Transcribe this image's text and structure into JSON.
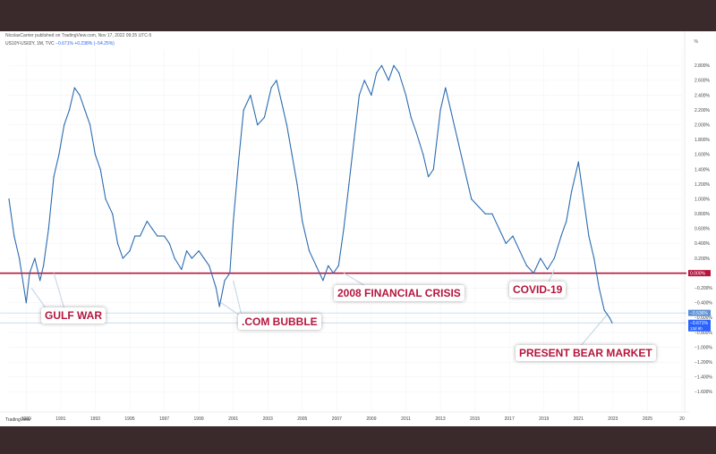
{
  "header": {
    "publisher": "NicolasCarrier published on TradingView.com, Nov 17, 2022 09:25 UTC-5",
    "symbol": "US10Y-US02Y, 1M, TVC",
    "change": "−0.671%  +0.238% (−54.25%)",
    "unit": "%"
  },
  "brand": "TradingView",
  "colors": {
    "line": "#2b6cb0",
    "zero_line": "#b5163d",
    "callout_text": "#b5163d",
    "last_price": "#2962ff"
  },
  "annotations": [
    "GULF WAR",
    ".COM BUBBLE",
    "2008 FINANCIAL CRISIS",
    "COVID-19",
    "PRESENT BEAR MARKET"
  ],
  "chart_data": {
    "type": "line",
    "title": "US10Y-US02Y, 1M, TVC",
    "ylabel": "%",
    "xlim": [
      1988,
      2027
    ],
    "ylim": [
      -1.8,
      2.9
    ],
    "x_ticks": [
      "1989",
      "1991",
      "1993",
      "1995",
      "1997",
      "1999",
      "2001",
      "2003",
      "2005",
      "2007",
      "2009",
      "2011",
      "2013",
      "2015",
      "2017",
      "2019",
      "2021",
      "2023",
      "2025",
      "20"
    ],
    "y_ticks": [
      "2.800%",
      "2.600%",
      "2.400%",
      "2.200%",
      "2.000%",
      "1.800%",
      "1.600%",
      "1.400%",
      "1.200%",
      "1.000%",
      "0.800%",
      "0.600%",
      "0.400%",
      "0.200%",
      "0.000%",
      "−0.200%",
      "−0.400%",
      "−0.600%",
      "−0.800%",
      "−1.000%",
      "−1.200%",
      "−1.400%",
      "−1.600%"
    ],
    "price_labels": [
      "−0.536%",
      "−0.671%",
      "13d 6h"
    ],
    "series": [
      {
        "name": "US10Y-US02Y",
        "x": [
          1988.0,
          1988.3,
          1988.6,
          1989.0,
          1989.2,
          1989.5,
          1989.8,
          1990.0,
          1990.3,
          1990.6,
          1990.9,
          1991.2,
          1991.5,
          1991.8,
          1992.1,
          1992.4,
          1992.7,
          1993.0,
          1993.3,
          1993.6,
          1994.0,
          1994.3,
          1994.6,
          1995.0,
          1995.3,
          1995.6,
          1996.0,
          1996.3,
          1996.6,
          1997.0,
          1997.3,
          1997.6,
          1998.0,
          1998.3,
          1998.6,
          1999.0,
          1999.3,
          1999.6,
          2000.0,
          2000.2,
          2000.5,
          2000.8,
          2001.0,
          2001.3,
          2001.6,
          2002.0,
          2002.4,
          2002.8,
          2003.2,
          2003.5,
          2003.8,
          2004.1,
          2004.4,
          2004.7,
          2005.0,
          2005.4,
          2005.8,
          2006.2,
          2006.5,
          2006.8,
          2007.1,
          2007.4,
          2007.7,
          2008.0,
          2008.3,
          2008.6,
          2009.0,
          2009.3,
          2009.6,
          2010.0,
          2010.3,
          2010.6,
          2011.0,
          2011.3,
          2011.6,
          2012.0,
          2012.3,
          2012.6,
          2013.0,
          2013.3,
          2013.6,
          2014.0,
          2014.4,
          2014.8,
          2015.2,
          2015.6,
          2016.0,
          2016.4,
          2016.8,
          2017.2,
          2017.6,
          2018.0,
          2018.4,
          2018.8,
          2019.2,
          2019.6,
          2020.0,
          2020.3,
          2020.6,
          2021.0,
          2021.3,
          2021.6,
          2021.9,
          2022.2,
          2022.5,
          2022.8,
          2022.95
        ],
        "values": [
          1.0,
          0.5,
          0.2,
          -0.4,
          0.0,
          0.2,
          -0.1,
          0.1,
          0.6,
          1.3,
          1.6,
          2.0,
          2.2,
          2.5,
          2.4,
          2.2,
          2.0,
          1.6,
          1.4,
          1.0,
          0.8,
          0.4,
          0.2,
          0.3,
          0.5,
          0.5,
          0.7,
          0.6,
          0.5,
          0.5,
          0.4,
          0.2,
          0.05,
          0.3,
          0.2,
          0.3,
          0.2,
          0.1,
          -0.2,
          -0.45,
          -0.1,
          0.0,
          0.7,
          1.5,
          2.2,
          2.4,
          2.0,
          2.1,
          2.5,
          2.6,
          2.3,
          2.0,
          1.6,
          1.2,
          0.7,
          0.3,
          0.1,
          -0.1,
          0.1,
          0.0,
          0.1,
          0.6,
          1.2,
          1.8,
          2.4,
          2.6,
          2.4,
          2.7,
          2.8,
          2.6,
          2.8,
          2.7,
          2.4,
          2.1,
          1.9,
          1.6,
          1.3,
          1.4,
          2.2,
          2.5,
          2.2,
          1.8,
          1.4,
          1.0,
          0.9,
          0.8,
          0.8,
          0.6,
          0.4,
          0.5,
          0.3,
          0.1,
          0.0,
          0.2,
          0.05,
          0.2,
          0.5,
          0.7,
          1.1,
          1.5,
          1.0,
          0.5,
          0.2,
          -0.2,
          -0.5,
          -0.6,
          -0.67
        ]
      }
    ]
  }
}
